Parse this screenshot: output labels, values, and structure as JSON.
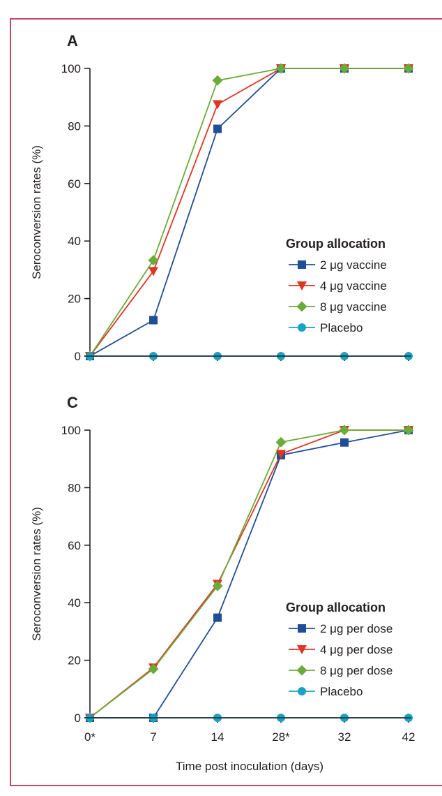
{
  "colors": {
    "frame": "#c2476a",
    "axis": "#231f20",
    "s2": "#1f4e96",
    "s4": "#e03424",
    "s8": "#6aab3a",
    "placebo": "#1aa2c3"
  },
  "chart_data": [
    {
      "type": "line",
      "panel_label": "A",
      "x": [
        "0*",
        "7",
        "14",
        "28*",
        "32",
        "42"
      ],
      "ylabel": "Seroconversion rates (%)",
      "xlabel": "",
      "ylim": [
        0,
        100
      ],
      "yticks": [
        0,
        20,
        40,
        60,
        80,
        100
      ],
      "legend_title": "Group allocation",
      "legend_position": "center-right",
      "series": [
        {
          "name": "2 μg vaccine",
          "color": "#1f4e96",
          "marker": "square",
          "values": [
            0,
            12.5,
            79,
            100,
            100,
            100
          ]
        },
        {
          "name": "4 μg vaccine",
          "color": "#e03424",
          "marker": "triangle-down",
          "values": [
            0,
            29.5,
            87.5,
            100,
            100,
            100
          ]
        },
        {
          "name": "8 μg vaccine",
          "color": "#6aab3a",
          "marker": "diamond",
          "values": [
            0,
            33.3,
            95.8,
            100,
            100,
            100
          ]
        },
        {
          "name": "Placebo",
          "color": "#1aa2c3",
          "marker": "circle",
          "values": [
            0,
            0,
            0,
            0,
            0,
            0
          ]
        }
      ]
    },
    {
      "type": "line",
      "panel_label": "C",
      "x": [
        "0*",
        "7",
        "14",
        "28*",
        "32",
        "42"
      ],
      "ylabel": "Seroconversion rates (%)",
      "xlabel": "Time post inoculation (days)",
      "ylim": [
        0,
        100
      ],
      "yticks": [
        0,
        20,
        40,
        60,
        80,
        100
      ],
      "legend_title": "Group allocation",
      "legend_position": "lower-right",
      "series": [
        {
          "name": "2 μg per dose",
          "color": "#1f4e96",
          "marker": "square",
          "values": [
            0,
            0,
            34.8,
            91.3,
            95.7,
            100
          ]
        },
        {
          "name": "4 μg per dose",
          "color": "#e03424",
          "marker": "triangle-down",
          "values": [
            0,
            17.4,
            46.5,
            91.7,
            100,
            100
          ]
        },
        {
          "name": "8 μg per dose",
          "color": "#6aab3a",
          "marker": "diamond",
          "values": [
            0,
            17.0,
            45.8,
            95.8,
            100,
            100
          ]
        },
        {
          "name": "Placebo",
          "color": "#1aa2c3",
          "marker": "circle",
          "values": [
            0,
            0,
            0,
            0,
            0,
            0
          ]
        }
      ]
    }
  ]
}
